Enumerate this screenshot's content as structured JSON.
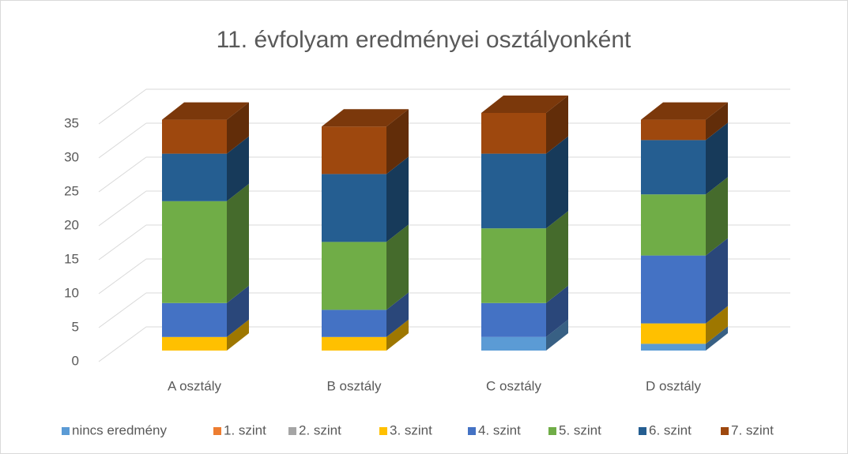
{
  "chart_data": {
    "type": "bar3d_stacked",
    "title": "11. évfolyam eredményei osztályonként",
    "categories": [
      "A osztály",
      "B osztály",
      "C osztály",
      "D osztály"
    ],
    "series": [
      {
        "name": "nincs eredmény",
        "color": "#5b9bd5",
        "values": [
          0,
          0,
          2,
          1
        ]
      },
      {
        "name": "1. szint",
        "color": "#ed7d31",
        "values": [
          0,
          0,
          0,
          0
        ]
      },
      {
        "name": "2. szint",
        "color": "#a5a5a5",
        "values": [
          0,
          0,
          0,
          0
        ]
      },
      {
        "name": "3. szint",
        "color": "#ffc000",
        "values": [
          2,
          2,
          0,
          3
        ]
      },
      {
        "name": "4. szint",
        "color": "#4472c4",
        "values": [
          5,
          4,
          5,
          10
        ]
      },
      {
        "name": "5. szint",
        "color": "#70ad47",
        "values": [
          15,
          10,
          11,
          9
        ]
      },
      {
        "name": "6. szint",
        "color": "#255e91",
        "values": [
          7,
          10,
          11,
          8
        ]
      },
      {
        "name": "7. szint",
        "color": "#9e480e",
        "values": [
          5,
          7,
          6,
          3
        ]
      }
    ],
    "ylim": [
      0,
      35
    ],
    "yticks": [
      0,
      5,
      10,
      15,
      20,
      25,
      30,
      35
    ],
    "grid": true,
    "legend": "bottom"
  }
}
